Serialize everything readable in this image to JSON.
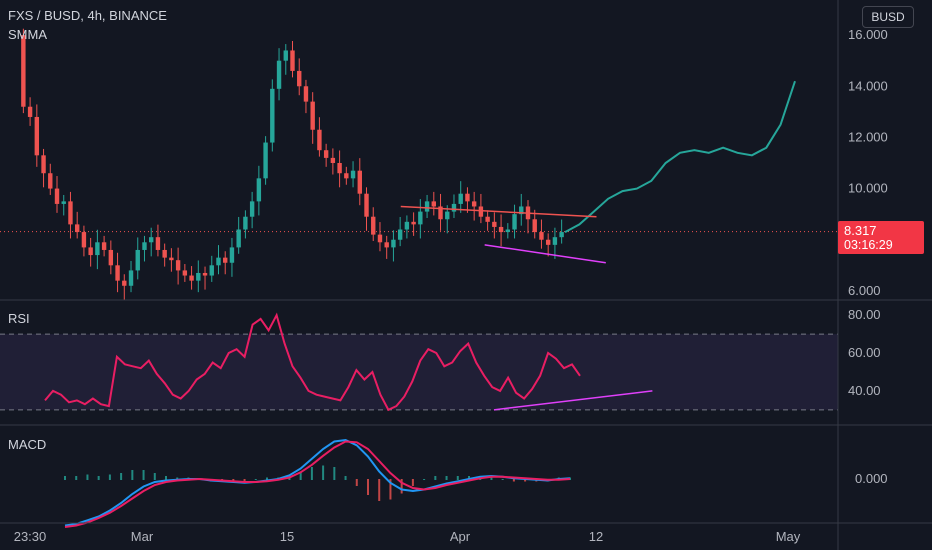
{
  "header": {
    "symbol_line": "FXS / BUSD, 4h, BINANCE",
    "indicator": "SMMA"
  },
  "currency_button": "BUSD",
  "last_price": {
    "value": "8.317",
    "countdown": "03:16:29"
  },
  "panes": {
    "rsi_label": "RSI",
    "macd_label": "MACD"
  },
  "colors": {
    "up": "#26a69a",
    "down": "#ef5350",
    "rsi": "#e91e63",
    "projection": "#26a69a",
    "resistance": "#ef5350",
    "support": "#e040fb",
    "rsi_band": "#7e57c2",
    "background": "#131722"
  },
  "chart_data": {
    "type": "candlestick",
    "price_axis": {
      "ticks": [
        "16.000",
        "14.000",
        "12.000",
        "10.000",
        "8.000",
        "6.000"
      ],
      "range": [
        5.8,
        16.2
      ]
    },
    "rsi_axis": {
      "ticks": [
        "80.00",
        "60.00",
        "40.00"
      ],
      "range": [
        30,
        80
      ],
      "band": [
        30,
        70
      ]
    },
    "macd_axis": {
      "ticks": [
        "0.000"
      ]
    },
    "x_axis_labels": [
      "23:30",
      "Mar",
      "15",
      "Apr",
      "12",
      "May"
    ],
    "close_series": [
      13.2,
      12.8,
      11.3,
      10.6,
      10.0,
      9.4,
      9.5,
      8.6,
      8.3,
      7.7,
      7.4,
      7.9,
      7.6,
      7.0,
      6.4,
      6.2,
      6.8,
      7.6,
      7.9,
      8.1,
      7.6,
      7.3,
      7.2,
      6.8,
      6.6,
      6.4,
      6.7,
      6.6,
      7.0,
      7.3,
      7.1,
      7.7,
      8.4,
      8.9,
      9.5,
      10.4,
      11.8,
      13.9,
      15.0,
      15.4,
      14.6,
      14.0,
      13.4,
      12.3,
      11.5,
      11.2,
      11.0,
      10.6,
      10.4,
      10.7,
      9.8,
      8.9,
      8.2,
      7.9,
      7.7,
      8.0,
      8.4,
      8.7,
      8.6,
      9.1,
      9.5,
      9.3,
      8.8,
      9.1,
      9.4,
      9.8,
      9.5,
      9.3,
      8.9,
      8.7,
      8.5,
      8.3,
      8.4,
      9.0,
      9.3,
      8.8,
      8.3,
      8.0,
      7.8,
      8.1,
      8.3
    ],
    "projection": [
      8.3,
      8.6,
      9.1,
      9.6,
      9.9,
      10.0,
      10.3,
      11.0,
      11.4,
      11.5,
      11.4,
      11.6,
      11.4,
      11.3,
      11.6,
      12.5,
      14.2
    ],
    "rsi_series": [
      35,
      40,
      38,
      34,
      35,
      33,
      36,
      33,
      32,
      58,
      54,
      53,
      52,
      56,
      49,
      44,
      38,
      36,
      40,
      46,
      49,
      55,
      52,
      60,
      62,
      58,
      75,
      78,
      72,
      80,
      65,
      53,
      47,
      40,
      38,
      37,
      36,
      35,
      42,
      51,
      46,
      50,
      38,
      30,
      32,
      37,
      45,
      56,
      62,
      60,
      53,
      55,
      61,
      65,
      55,
      48,
      42,
      40,
      47,
      39,
      36,
      41,
      48,
      60,
      57,
      52,
      54,
      48
    ],
    "macd_series": [
      -0.62,
      -0.6,
      -0.55,
      -0.5,
      -0.42,
      -0.32,
      -0.2,
      -0.1,
      -0.04,
      -0.02,
      -0.01,
      0.0,
      0.0,
      -0.02,
      -0.03,
      -0.04,
      -0.05,
      -0.04,
      -0.02,
      0.0,
      0.05,
      0.14,
      0.27,
      0.4,
      0.5,
      0.52,
      0.45,
      0.3,
      0.1,
      -0.05,
      -0.14,
      -0.16,
      -0.14,
      -0.1,
      -0.06,
      -0.03,
      0.0,
      0.03,
      0.04,
      0.03,
      0.01,
      0.0,
      -0.01,
      -0.02,
      0.0,
      0.01
    ],
    "signal_series": [
      -0.64,
      -0.62,
      -0.58,
      -0.52,
      -0.45,
      -0.36,
      -0.26,
      -0.16,
      -0.08,
      -0.04,
      -0.02,
      -0.01,
      0.0,
      -0.01,
      -0.02,
      -0.03,
      -0.04,
      -0.04,
      -0.03,
      -0.01,
      0.02,
      0.09,
      0.19,
      0.31,
      0.42,
      0.5,
      0.49,
      0.4,
      0.24,
      0.08,
      -0.05,
      -0.12,
      -0.14,
      -0.12,
      -0.08,
      -0.05,
      -0.02,
      0.01,
      0.03,
      0.03,
      0.02,
      0.01,
      0.0,
      -0.01,
      -0.01,
      0.0
    ],
    "trendlines": [
      {
        "name": "resistance",
        "from": [
          0.43,
          9.3
        ],
        "to": [
          0.64,
          8.9
        ]
      },
      {
        "name": "support",
        "from": [
          0.52,
          7.8
        ],
        "to": [
          0.65,
          7.1
        ]
      },
      {
        "name": "rsi-support",
        "from": [
          0.53,
          30
        ],
        "to": [
          0.7,
          40
        ]
      }
    ],
    "grid": false
  }
}
